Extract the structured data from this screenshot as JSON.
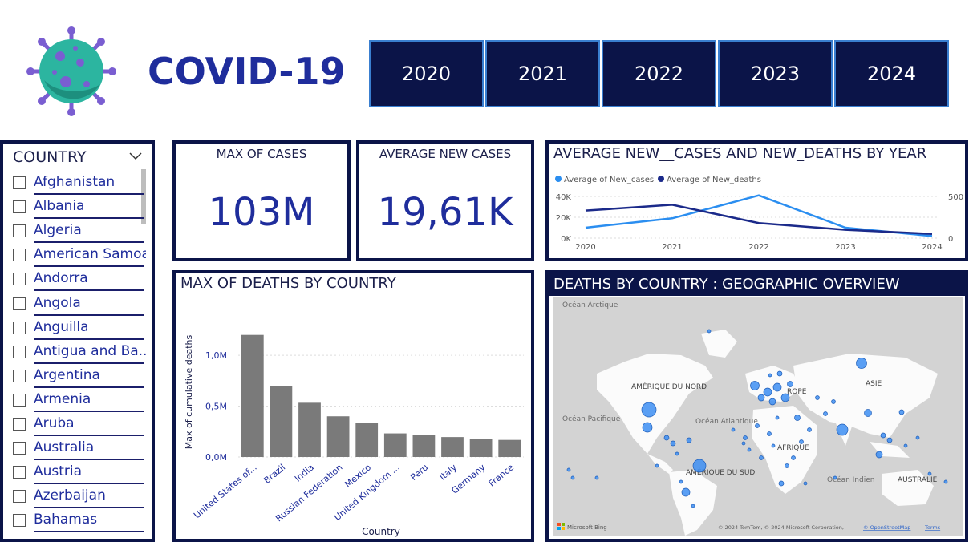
{
  "header": {
    "title": "COVID-19",
    "years": [
      "2020",
      "2021",
      "2022",
      "2023",
      "2024"
    ]
  },
  "slicer": {
    "title": "COUNTRY",
    "items": [
      "Afghanistan",
      "Albania",
      "Algeria",
      "American Samoa",
      "Andorra",
      "Angola",
      "Anguilla",
      "Antigua and Ba...",
      "Argentina",
      "Armenia",
      "Aruba",
      "Australia",
      "Austria",
      "Azerbaijan",
      "Bahamas"
    ]
  },
  "kpi_cases": {
    "label": "MAX OF CASES",
    "value": "103M"
  },
  "kpi_new_cases": {
    "label": "AVERAGE NEW CASES",
    "value": "19,61K"
  },
  "line_chart": {
    "title": "AVERAGE NEW__CASES AND NEW_DEATHS BY YEAR",
    "legend": [
      "Average of New_cases",
      "Average of New_deaths"
    ],
    "left_ticks": [
      "40K",
      "20K",
      "0K"
    ],
    "right_ticks": [
      "500",
      "0"
    ]
  },
  "bar_chart": {
    "title": "MAX OF DEATHS BY COUNTRY",
    "xlabel": "Country",
    "ylabel": "Max of cumulative deaths",
    "yticks": [
      "1,0M",
      "0,5M",
      "0,0M"
    ]
  },
  "map": {
    "title": "DEATHS BY COUNTRY : GEOGRAPHIC OVERVIEW",
    "labels": [
      "Océan Arctique",
      "AMÉRIQUE DU NORD",
      "Océan Pacifique",
      "Océan Atlantique",
      "ROPE",
      "ASIE",
      "AFRIQUE",
      "AMÉRIQUE DU SUD",
      "Océan Indien",
      "AUSTRALIE"
    ],
    "bing": "Microsoft Bing",
    "copyright": "© 2024 TomTom, © 2024 Microsoft Corporation,",
    "osm": "© OpenStreetMap",
    "terms": "Terms"
  },
  "colors": {
    "navy": "#0b1448",
    "accent_blue": "#1f2d9c",
    "cases_line": "#2b8ef0",
    "deaths_line": "#1b2a8a",
    "bar": "#7a7a7a"
  },
  "chart_data": [
    {
      "type": "line",
      "title": "AVERAGE NEW__CASES AND NEW_DEATHS BY YEAR",
      "x": [
        2020,
        2021,
        2022,
        2023,
        2024
      ],
      "series": [
        {
          "name": "Average of New_cases",
          "axis": "left",
          "values": [
            10000,
            19000,
            41000,
            10000,
            2000
          ]
        },
        {
          "name": "Average of New_deaths",
          "axis": "right",
          "values": [
            330,
            400,
            180,
            100,
            50
          ]
        }
      ],
      "ylim_left": [
        0,
        40000
      ],
      "ylim_right": [
        0,
        500
      ]
    },
    {
      "type": "bar",
      "title": "MAX OF DEATHS BY COUNTRY",
      "categories": [
        "United States of...",
        "Brazil",
        "India",
        "Russian Federation",
        "Mexico",
        "United Kingdom ...",
        "Peru",
        "Italy",
        "Germany",
        "France"
      ],
      "values": [
        1200000,
        700000,
        533000,
        400000,
        334000,
        232000,
        220000,
        196000,
        175000,
        168000
      ],
      "xlabel": "Country",
      "ylabel": "Max of cumulative deaths",
      "ylim": [
        0,
        1300000
      ]
    }
  ]
}
